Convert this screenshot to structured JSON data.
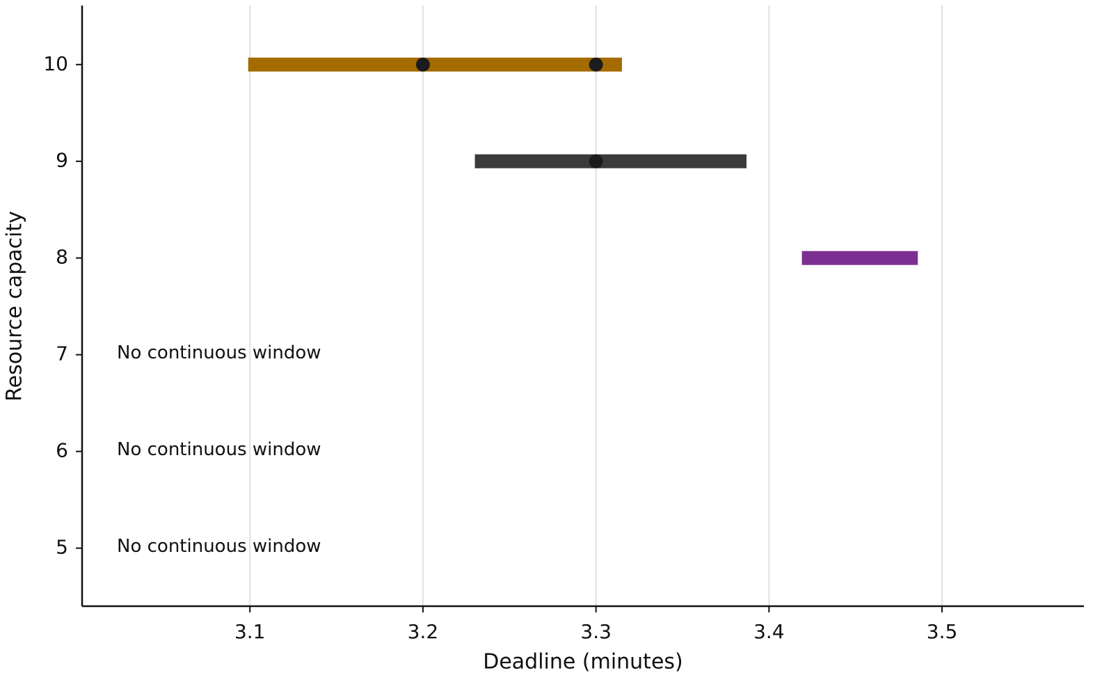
{
  "chart_data": {
    "type": "range",
    "xlabel": "Deadline (minutes)",
    "ylabel": "Resource capacity",
    "xlim": [
      3.003,
      3.582
    ],
    "xticks": [
      3.1,
      3.2,
      3.3,
      3.4,
      3.5
    ],
    "ylim": [
      4.4,
      10.61
    ],
    "yticks": [
      5,
      6,
      7,
      8,
      9,
      10
    ],
    "grid": true,
    "ranges": [
      {
        "y": 10,
        "start": 3.099,
        "end": 3.315,
        "color": "#a36b00"
      },
      {
        "y": 9,
        "start": 3.23,
        "end": 3.387,
        "color": "#3b3b3b"
      },
      {
        "y": 8,
        "start": 3.419,
        "end": 3.486,
        "color": "#7b2f93"
      }
    ],
    "points": [
      {
        "x": 3.2,
        "y": 10
      },
      {
        "x": 3.3,
        "y": 10
      },
      {
        "x": 3.3,
        "y": 9
      }
    ],
    "point_color": "#1c1c1e",
    "annotations": [
      {
        "text": "No continuous window",
        "y": 7
      },
      {
        "text": "No continuous window",
        "y": 6
      },
      {
        "text": "No continuous window",
        "y": 5
      }
    ]
  }
}
